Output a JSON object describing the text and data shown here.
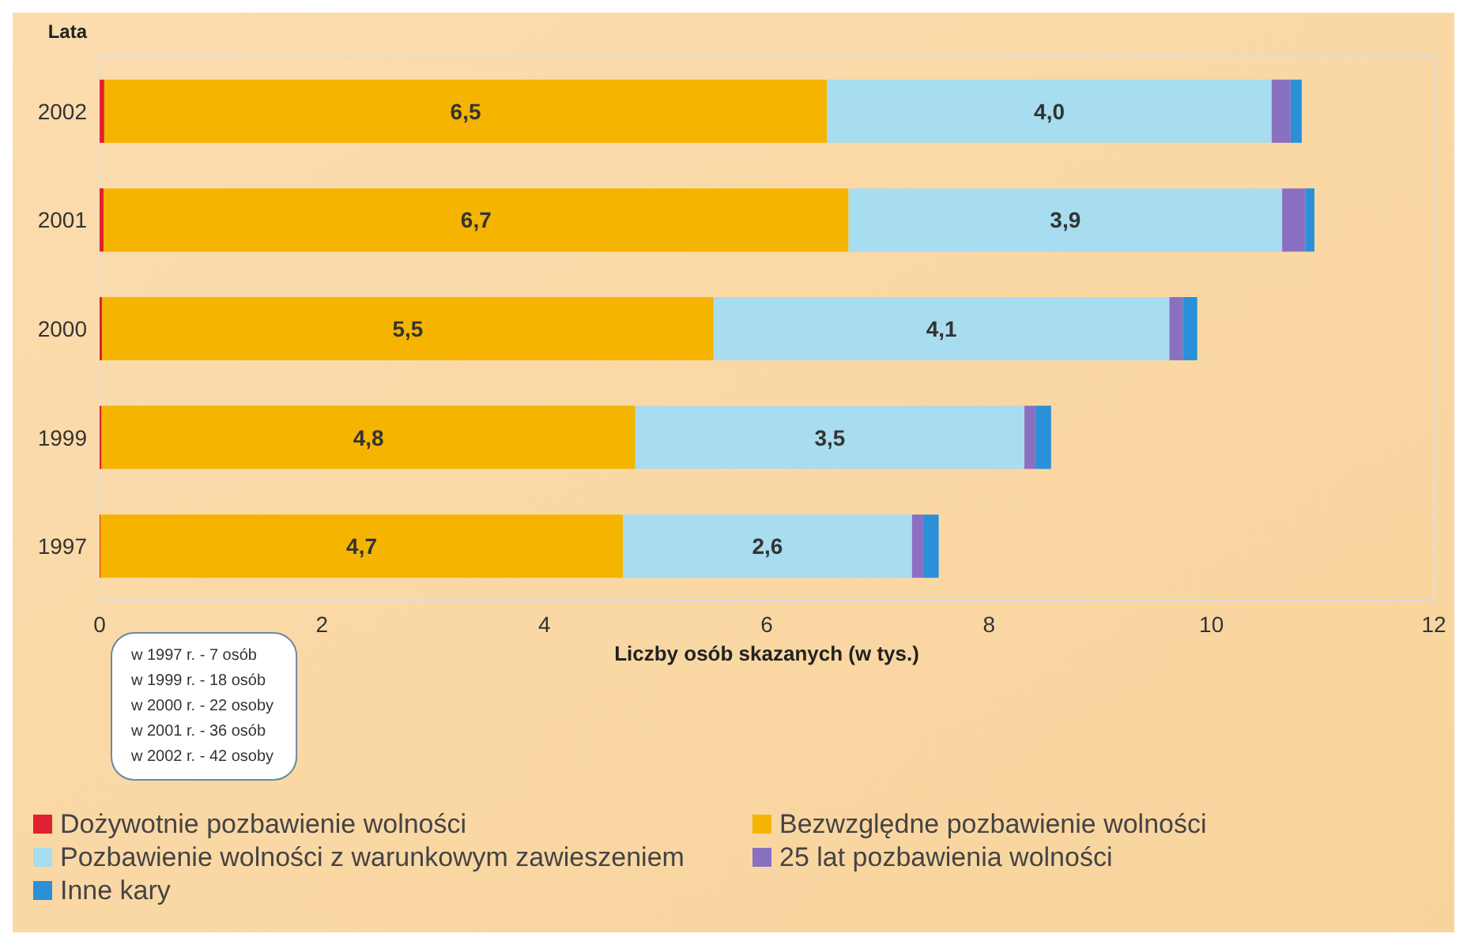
{
  "chart_data": {
    "type": "bar",
    "orientation": "horizontal",
    "stacked": true,
    "ylabel": "Lata",
    "xlabel": "Liczby osób skazanych (w tys.)",
    "categories": [
      "2002",
      "2001",
      "2000",
      "1999",
      "1997"
    ],
    "series": [
      {
        "name": "Dożywotnie pozbawienie wolności",
        "color": "#e02030",
        "values": [
          0.042,
          0.036,
          0.022,
          0.018,
          0.007
        ]
      },
      {
        "name": "Bezwzględne pozbawienie wolności",
        "color": "#f5b400",
        "values": [
          6.5,
          6.7,
          5.5,
          4.8,
          4.7
        ],
        "value_labels": [
          "6,5",
          "6,7",
          "5,5",
          "4,8",
          "4,7"
        ]
      },
      {
        "name": "Pozbawienie wolności z warunkowym zawieszeniem",
        "color": "#a8dcef",
        "values": [
          4.0,
          3.9,
          4.1,
          3.5,
          2.6
        ],
        "value_labels": [
          "4,0",
          "3,9",
          "4,1",
          "3,5",
          "2,6"
        ]
      },
      {
        "name": "25 lat pozbawienia wolności",
        "color": "#8a70c0",
        "values": [
          0.17,
          0.21,
          0.12,
          0.1,
          0.1
        ]
      },
      {
        "name": "Inne kary",
        "color": "#2a90d8",
        "values": [
          0.1,
          0.08,
          0.13,
          0.14,
          0.14
        ]
      }
    ],
    "xlim": [
      0,
      12
    ],
    "xticks": [
      0,
      2,
      4,
      6,
      8,
      10,
      12
    ],
    "grid": false,
    "legend": "bottom",
    "annotations": [
      "w 1997 r. - 7 osób\nw 1999 r. - 18 osób\nw 2000 r. - 22 osoby\nw 2001 r. - 36 osób\nw 2002 r. - 42 osoby"
    ]
  }
}
